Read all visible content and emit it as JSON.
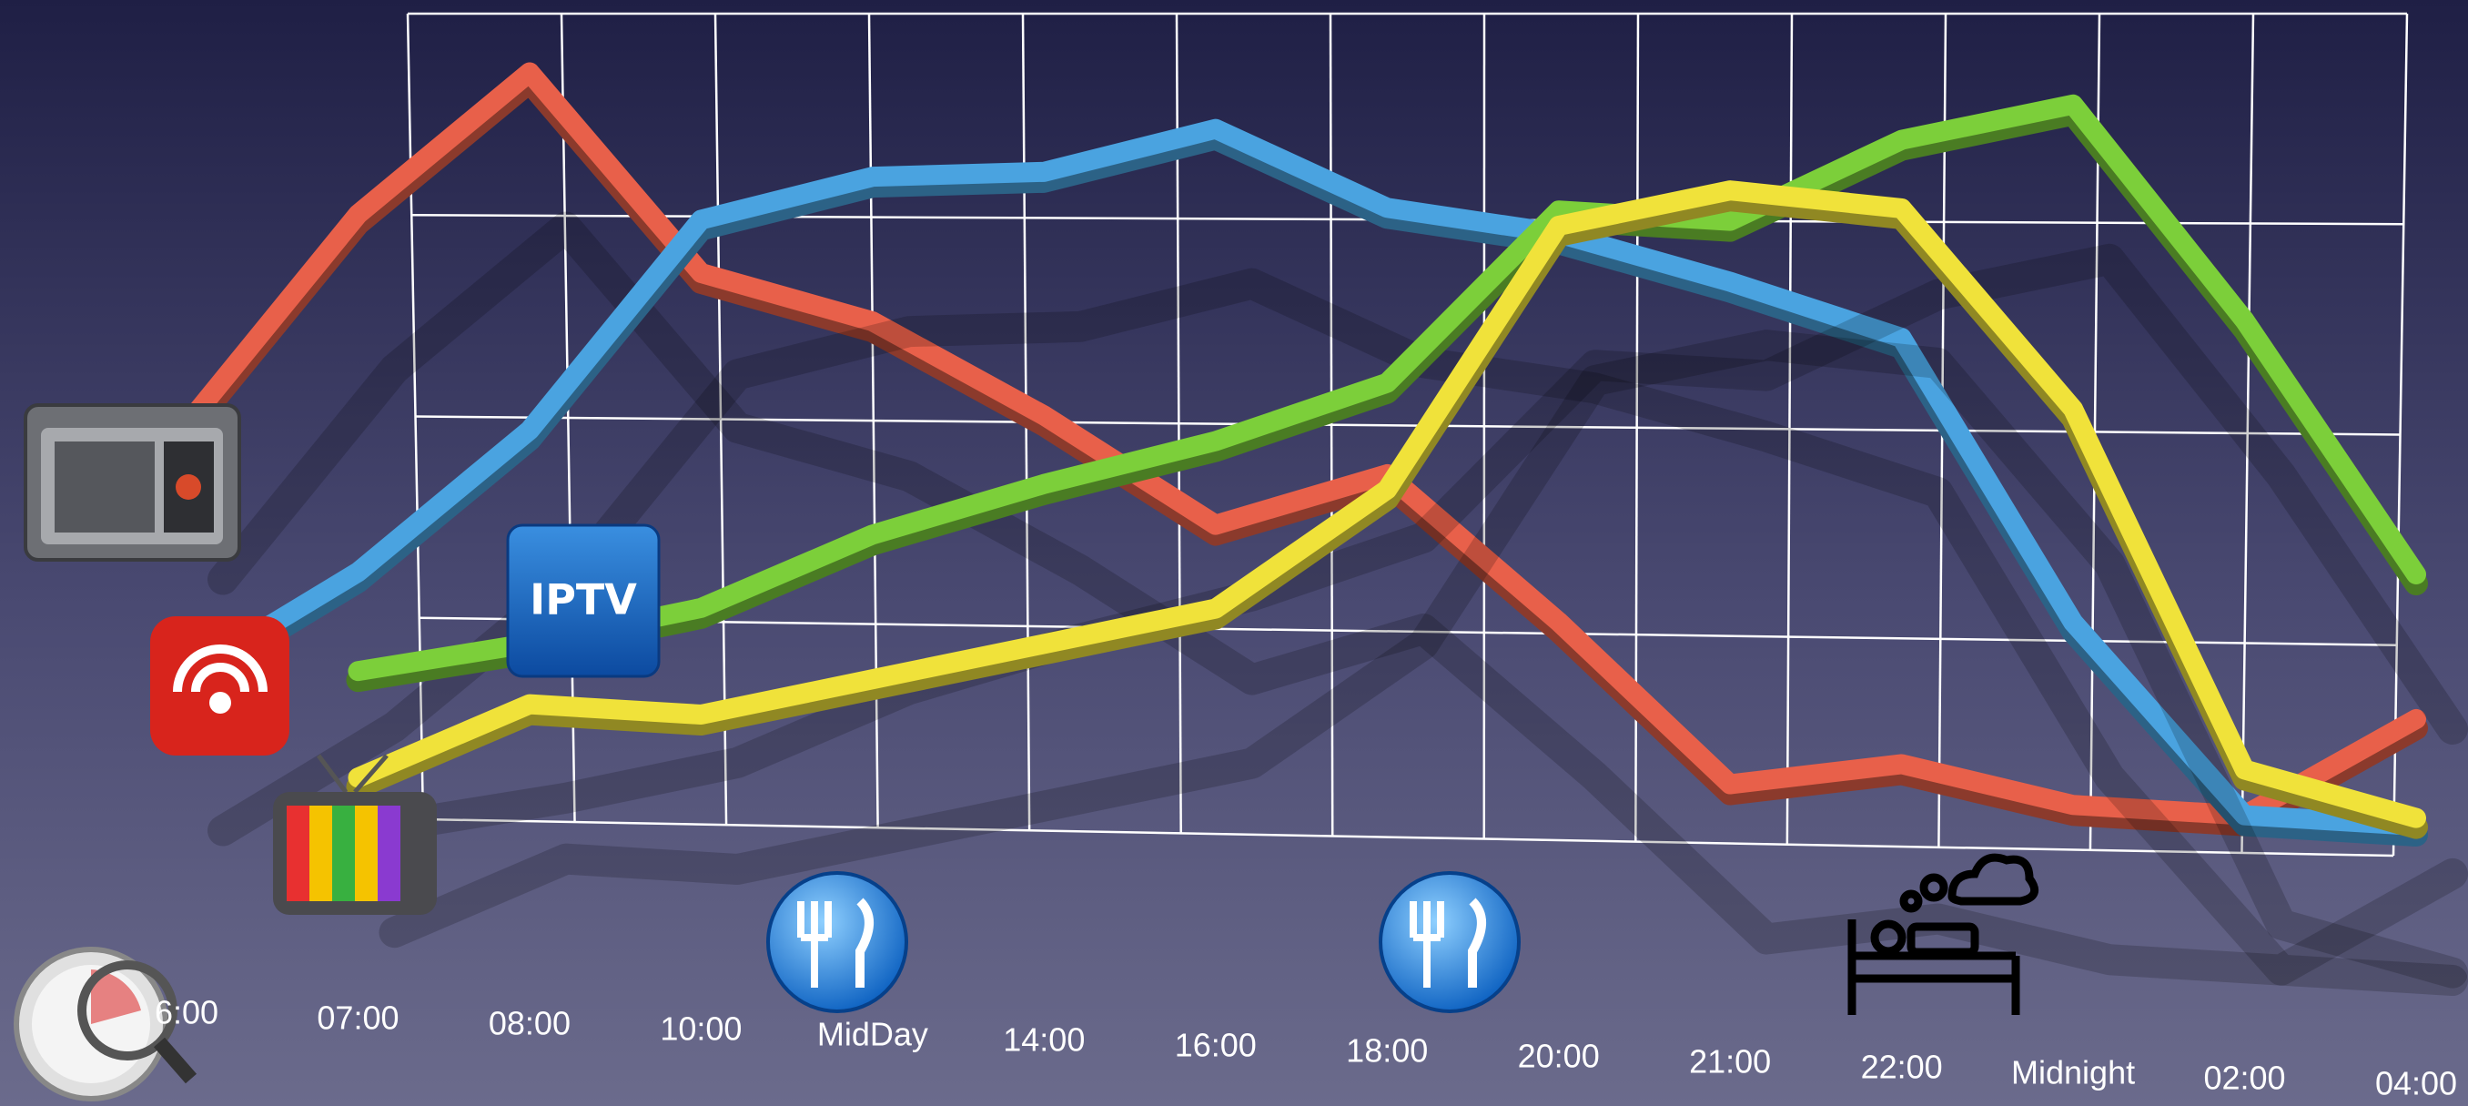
{
  "chart_data": {
    "type": "line",
    "categories": [
      "6:00",
      "07:00",
      "08:00",
      "10:00",
      "MidDay",
      "14:00",
      "16:00",
      "18:00",
      "20:00",
      "21:00",
      "22:00",
      "Midnight",
      "02:00",
      "04:00"
    ],
    "ylim": [
      -10,
      100
    ],
    "series": [
      {
        "color": "#e8604a",
        "values": [
          49,
          77,
          96,
          70,
          64,
          52,
          38,
          45,
          26,
          5,
          8,
          3,
          2,
          15
        ]
      },
      {
        "color": "#4aa3e0",
        "values": [
          16,
          30,
          49,
          77,
          83,
          84,
          90,
          80,
          77,
          71,
          64,
          27,
          2,
          1
        ]
      },
      {
        "color": "#7ccf3a",
        "values": [
          null,
          17,
          21,
          26,
          36,
          43,
          49,
          57,
          80,
          79,
          90,
          95,
          67,
          34
        ]
      },
      {
        "color": "#f0e23a",
        "values": [
          null,
          3,
          13,
          12,
          17,
          22,
          27,
          43,
          78,
          83,
          81,
          55,
          8,
          2
        ]
      }
    ],
    "icon_label": "IPTV"
  }
}
